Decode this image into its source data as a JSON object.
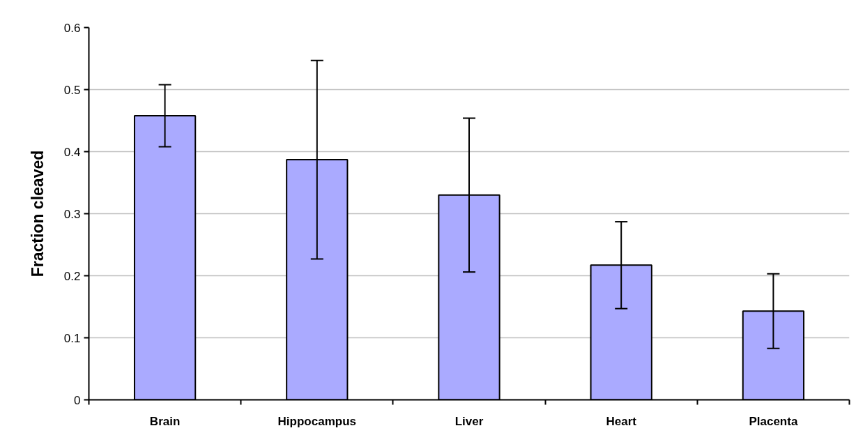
{
  "chart_data": {
    "type": "bar",
    "ylabel": "Fraction cleaved",
    "categories": [
      "Brain",
      "Hippocampus",
      "Liver",
      "Heart",
      "Placenta"
    ],
    "series": [
      {
        "color": "#aaaaff",
        "values": [
          0.458,
          0.387,
          0.33,
          0.217,
          0.143
        ],
        "errors": [
          0.05,
          0.16,
          0.124,
          0.07,
          0.06
        ]
      }
    ],
    "ylim": [
      0,
      0.6
    ],
    "yticks": [
      0,
      0.1,
      0.2,
      0.3,
      0.4,
      0.5,
      0.6
    ],
    "grid": "y"
  }
}
